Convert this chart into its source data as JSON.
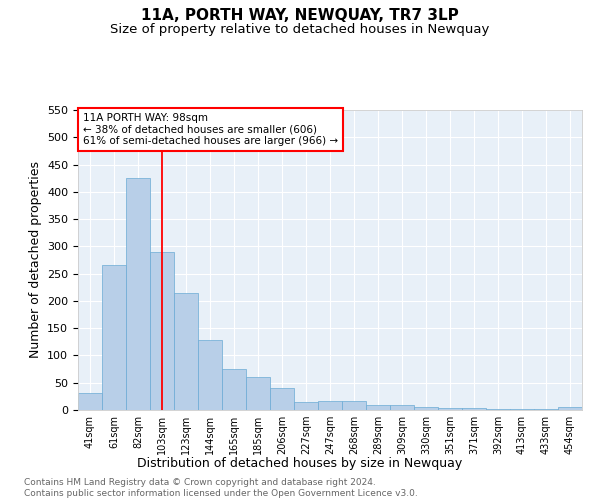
{
  "title": "11A, PORTH WAY, NEWQUAY, TR7 3LP",
  "subtitle": "Size of property relative to detached houses in Newquay",
  "xlabel": "Distribution of detached houses by size in Newquay",
  "ylabel": "Number of detached properties",
  "categories": [
    "41sqm",
    "61sqm",
    "82sqm",
    "103sqm",
    "123sqm",
    "144sqm",
    "165sqm",
    "185sqm",
    "206sqm",
    "227sqm",
    "247sqm",
    "268sqm",
    "289sqm",
    "309sqm",
    "330sqm",
    "351sqm",
    "371sqm",
    "392sqm",
    "413sqm",
    "433sqm",
    "454sqm"
  ],
  "values": [
    32,
    265,
    425,
    290,
    215,
    128,
    76,
    60,
    40,
    15,
    17,
    17,
    10,
    10,
    5,
    3,
    3,
    2,
    2,
    2,
    5
  ],
  "bar_color": "#b8cfe8",
  "bar_edge_color": "#6aaad4",
  "vline_color": "red",
  "annotation_text": "11A PORTH WAY: 98sqm\n← 38% of detached houses are smaller (606)\n61% of semi-detached houses are larger (966) →",
  "annotation_box_color": "white",
  "annotation_box_edge_color": "red",
  "ylim": [
    0,
    550
  ],
  "yticks": [
    0,
    50,
    100,
    150,
    200,
    250,
    300,
    350,
    400,
    450,
    500,
    550
  ],
  "background_color": "#e8f0f8",
  "grid_color": "white",
  "footer_text": "Contains HM Land Registry data © Crown copyright and database right 2024.\nContains public sector information licensed under the Open Government Licence v3.0.",
  "title_fontsize": 11,
  "subtitle_fontsize": 9.5,
  "xlabel_fontsize": 9,
  "ylabel_fontsize": 9,
  "footer_fontsize": 6.5,
  "tick_fontsize": 8,
  "xtick_fontsize": 7,
  "annotation_fontsize": 7.5
}
